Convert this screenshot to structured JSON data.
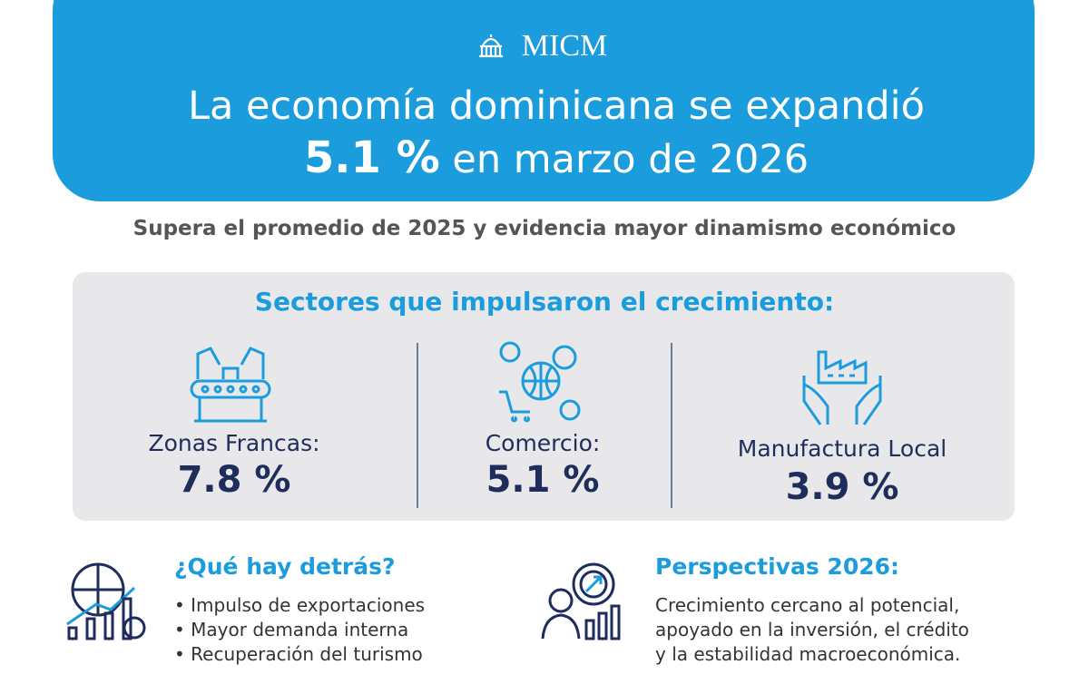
{
  "header": {
    "logo": "MICM",
    "title_line1": "La economía dominicana se expandió",
    "title_value": "5.1 %",
    "title_rest": "en marzo de 2026"
  },
  "subtitle": "Supera el promedio de 2025 y evidencia mayor dinamismo económico",
  "sectors": {
    "title": "Sectores que impulsaron el crecimiento:",
    "items": [
      {
        "label": "Zonas Francas:",
        "value": "7.8 %"
      },
      {
        "label": "Comercio:",
        "value": "5.1 %"
      },
      {
        "label": "Manufactura Local",
        "value": "3.9 %"
      }
    ]
  },
  "drivers": {
    "title": "¿Qué hay detrás?",
    "bullets": [
      "Impulso de exportaciones",
      "Mayor demanda interna",
      "Recuperación del turismo"
    ]
  },
  "outlook": {
    "title": "Perspectivas 2026:",
    "lines": [
      "Crecimiento cercano al potencial,",
      "apoyado en la inversión, el crédito",
      "y la estabilidad macroeconómica."
    ]
  }
}
